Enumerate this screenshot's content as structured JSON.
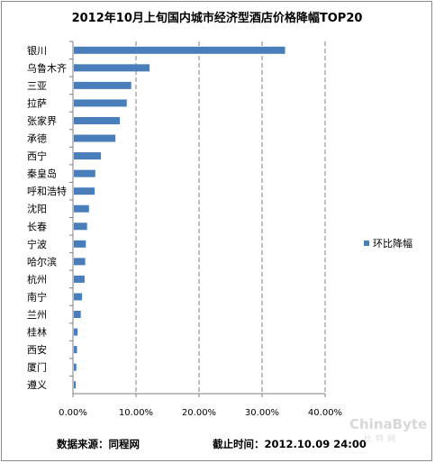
{
  "chart_data": {
    "type": "bar",
    "orientation": "horizontal",
    "title": "2012年10月上旬国内城市经济型酒店价格降幅TOP20",
    "categories": [
      "银川",
      "乌鲁木齐",
      "三亚",
      "拉萨",
      "张家界",
      "承德",
      "西宁",
      "秦皇岛",
      "呼和浩特",
      "沈阳",
      "长春",
      "宁波",
      "哈尔滨",
      "杭州",
      "南宁",
      "兰州",
      "桂林",
      "西安",
      "厦门",
      "遵义"
    ],
    "series": [
      {
        "name": "环比降幅",
        "values": [
          33.5,
          12.0,
          9.1,
          8.4,
          7.3,
          6.6,
          4.3,
          3.4,
          3.3,
          2.4,
          2.1,
          1.9,
          1.8,
          1.7,
          1.3,
          1.1,
          0.6,
          0.5,
          0.4,
          0.3
        ]
      }
    ],
    "xlim": [
      0,
      40
    ],
    "xticks": [
      "0.00%",
      "10.00%",
      "20.00%",
      "30.00%",
      "40.00%"
    ],
    "grid": "vertical dashed",
    "legend": "right",
    "bar_color": "#4a7ebb"
  },
  "footer": {
    "source": "数据来源：同程网",
    "deadline": "截止时间：2012.10.09  24:00"
  },
  "watermark": {
    "text": "ChinaByte",
    "sub": "比特网"
  }
}
